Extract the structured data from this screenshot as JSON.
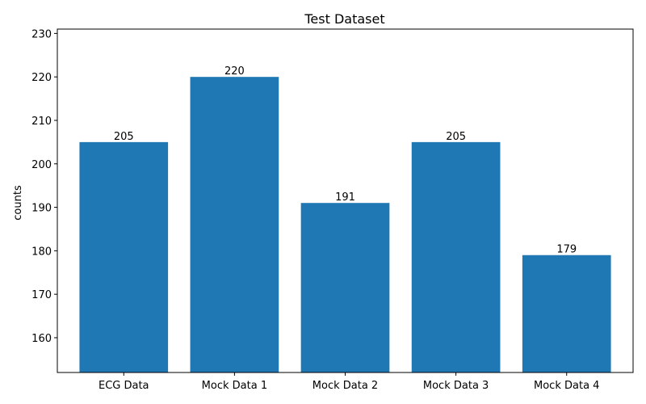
{
  "chart_data": {
    "type": "bar",
    "title": "Test Dataset",
    "xlabel": "",
    "ylabel": "counts",
    "categories": [
      "ECG Data",
      "Mock Data 1",
      "Mock Data 2",
      "Mock Data 3",
      "Mock Data 4"
    ],
    "values": [
      205,
      220,
      191,
      205,
      179
    ],
    "data_labels": [
      "205",
      "220",
      "191",
      "205",
      "179"
    ],
    "ylim": [
      152,
      231
    ],
    "yticks": [
      160,
      170,
      180,
      190,
      200,
      210,
      220,
      230
    ],
    "grid": false,
    "legend": "none",
    "bar_color": "#1f77b4"
  }
}
